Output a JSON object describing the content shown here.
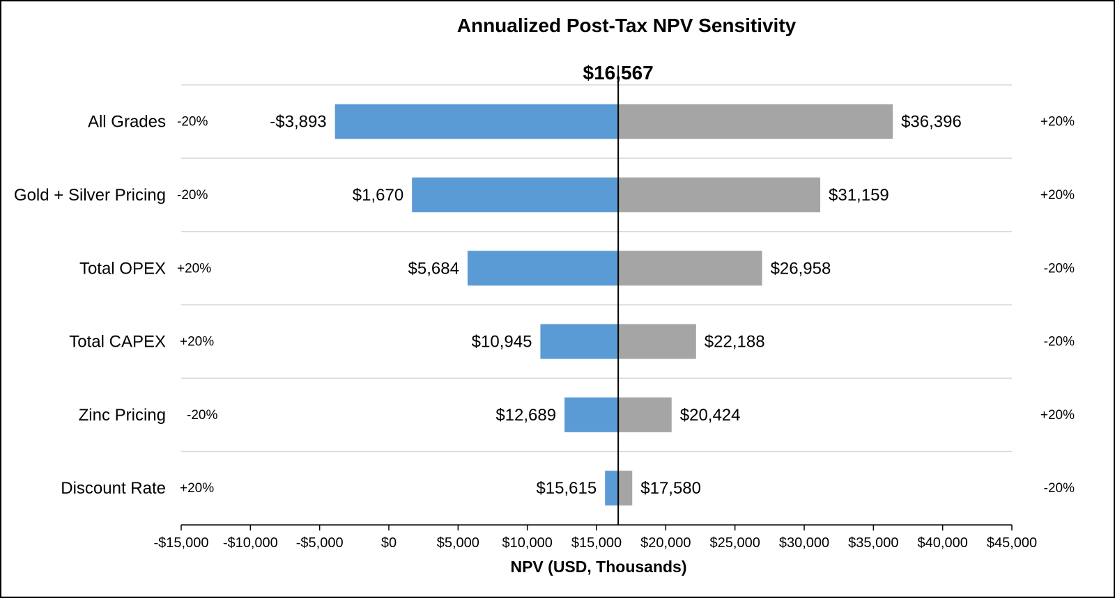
{
  "chart_data": {
    "type": "bar",
    "orientation": "horizontal",
    "subtype": "tornado",
    "title": "Annualized Post-Tax NPV Sensitivity",
    "base_value": 16567,
    "base_label": "$16,567",
    "xlabel": "NPV (USD, Thousands)",
    "ylabel": "",
    "xlim": [
      -15000,
      45000
    ],
    "x_ticks": [
      -15000,
      -10000,
      -5000,
      0,
      5000,
      10000,
      15000,
      20000,
      25000,
      30000,
      35000,
      40000,
      45000
    ],
    "x_tick_labels": [
      "-$15,000",
      "-$10,000",
      "-$5,000",
      "$0",
      "$5,000",
      "$10,000",
      "$15,000",
      "$20,000",
      "$25,000",
      "$30,000",
      "$35,000",
      "$40,000",
      "$45,000"
    ],
    "grid": "horizontal separators between categories",
    "colors": {
      "low_bar": "#5B9BD5",
      "high_bar": "#A5A5A5",
      "base_line": "#000000",
      "grid": "#D9D9D9"
    },
    "categories": [
      "All Grades",
      "Gold + Silver Pricing",
      "Total OPEX",
      "Total CAPEX",
      "Zinc Pricing",
      "Discount Rate"
    ],
    "rows": [
      {
        "category": "All Grades",
        "low": -3893,
        "low_label": "-$3,893",
        "low_pct": "-20%",
        "high": 36396,
        "high_label": "$36,396",
        "high_pct": "+20%"
      },
      {
        "category": "Gold + Silver Pricing",
        "low": 1670,
        "low_label": "$1,670",
        "low_pct": "-20%",
        "high": 31159,
        "high_label": "$31,159",
        "high_pct": "+20%"
      },
      {
        "category": "Total OPEX",
        "low": 5684,
        "low_label": "$5,684",
        "low_pct": "+20%",
        "high": 26958,
        "high_label": "$26,958",
        "high_pct": "-20%"
      },
      {
        "category": "Total CAPEX",
        "low": 10945,
        "low_label": "$10,945",
        "low_pct": "+20%",
        "high": 22188,
        "high_label": "$22,188",
        "high_pct": "-20%"
      },
      {
        "category": "Zinc Pricing",
        "low": 12689,
        "low_label": "$12,689",
        "low_pct": "-20%",
        "high": 20424,
        "high_label": "$20,424",
        "high_pct": "+20%"
      },
      {
        "category": "Discount Rate",
        "low": 15615,
        "low_label": "$15,615",
        "low_pct": "+20%",
        "high": 17580,
        "high_label": "$17,580",
        "high_pct": "-20%"
      }
    ]
  }
}
